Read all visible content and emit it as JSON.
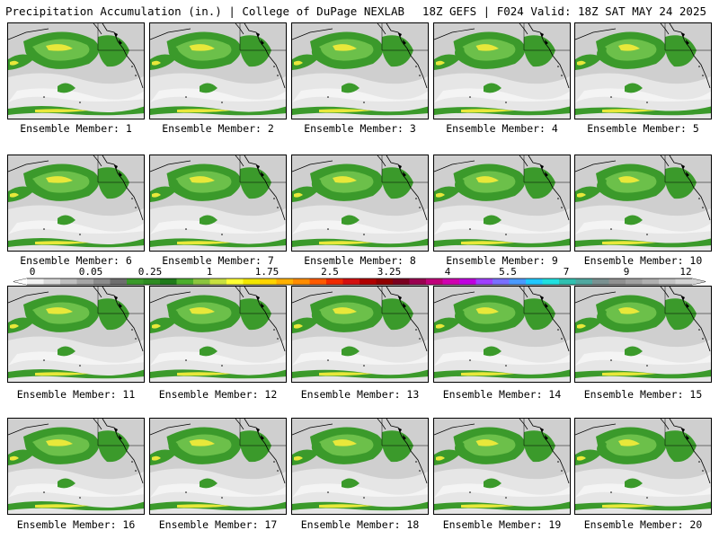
{
  "header": {
    "title_left": "Precipitation Accumulation (in.) | College of DuPage NEXLAB",
    "title_right": "18Z GEFS | F024 Valid: 18Z SAT MAY 24 2025"
  },
  "panels": [
    {
      "label": "Ensemble Member: 1"
    },
    {
      "label": "Ensemble Member: 2"
    },
    {
      "label": "Ensemble Member: 3"
    },
    {
      "label": "Ensemble Member: 4"
    },
    {
      "label": "Ensemble Member: 5"
    },
    {
      "label": "Ensemble Member: 6"
    },
    {
      "label": "Ensemble Member: 7"
    },
    {
      "label": "Ensemble Member: 8"
    },
    {
      "label": "Ensemble Member: 9"
    },
    {
      "label": "Ensemble Member: 10"
    },
    {
      "label": "Ensemble Member: 11"
    },
    {
      "label": "Ensemble Member: 12"
    },
    {
      "label": "Ensemble Member: 13"
    },
    {
      "label": "Ensemble Member: 14"
    },
    {
      "label": "Ensemble Member: 15"
    },
    {
      "label": "Ensemble Member: 16"
    },
    {
      "label": "Ensemble Member: 17"
    },
    {
      "label": "Ensemble Member: 18"
    },
    {
      "label": "Ensemble Member: 19"
    },
    {
      "label": "Ensemble Member: 20"
    }
  ],
  "colorbar": {
    "labels": [
      "0",
      "0.05",
      "0.25",
      "1",
      "1.75",
      "2.5",
      "3.25",
      "4",
      "5.5",
      "7",
      "9",
      "12"
    ],
    "colors": [
      "#f2f2f2",
      "#d9d9d9",
      "#bfbfbf",
      "#a6a6a6",
      "#8c8c8c",
      "#6e6e6e",
      "#3a9a2a",
      "#2e8b22",
      "#1f7a1a",
      "#4cae2c",
      "#8bc53f",
      "#c8e040",
      "#ffff33",
      "#f2e600",
      "#ffd400",
      "#ffb000",
      "#ff8c00",
      "#ff5a00",
      "#f02a00",
      "#d41010",
      "#b00000",
      "#900000",
      "#7a0020",
      "#9a0050",
      "#c0007a",
      "#d000b0",
      "#c000e0",
      "#a040ff",
      "#7a70ff",
      "#4a9aff",
      "#20c8ff",
      "#20e0e0",
      "#30c0b0",
      "#50a8a0",
      "#7a9090",
      "#909090",
      "#a0a0a0",
      "#b0b0b0",
      "#c4c4c4",
      "#d4d4d4"
    ]
  }
}
